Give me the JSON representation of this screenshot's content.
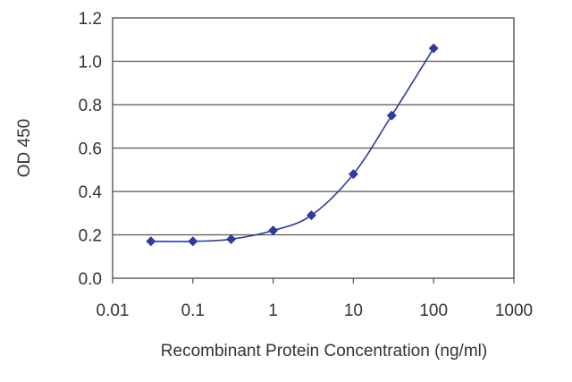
{
  "chart_data": {
    "type": "line",
    "title": "",
    "xlabel": "Recombinant Protein Concentration (ng/ml)",
    "ylabel": "OD 450",
    "x_scale": "log",
    "xlim": [
      0.01,
      1000
    ],
    "ylim": [
      0.0,
      1.2
    ],
    "x_ticks": [
      0.01,
      0.1,
      1,
      10,
      100,
      1000
    ],
    "x_tick_labels": [
      "0.01",
      "0.1",
      "1",
      "10",
      "100",
      "1000"
    ],
    "y_ticks": [
      0.0,
      0.2,
      0.4,
      0.6,
      0.8,
      1.0,
      1.2
    ],
    "y_tick_labels": [
      "0.0",
      "0.2",
      "0.4",
      "0.6",
      "0.8",
      "1.0",
      "1.2"
    ],
    "grid": "horizontal",
    "legend": "none",
    "series": [
      {
        "color": "#2e3a9e",
        "marker": "diamond",
        "points": [
          {
            "x": 0.03,
            "y": 0.17
          },
          {
            "x": 0.1,
            "y": 0.17
          },
          {
            "x": 0.3,
            "y": 0.18
          },
          {
            "x": 1,
            "y": 0.22
          },
          {
            "x": 3,
            "y": 0.29
          },
          {
            "x": 10,
            "y": 0.48
          },
          {
            "x": 30,
            "y": 0.75
          },
          {
            "x": 100,
            "y": 1.06
          }
        ]
      }
    ]
  }
}
